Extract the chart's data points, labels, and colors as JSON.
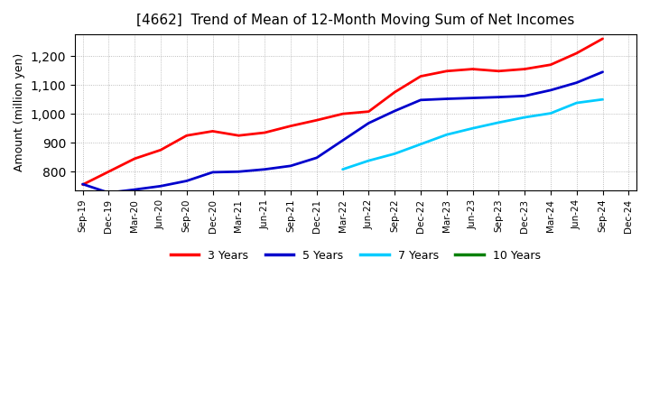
{
  "title": "[4662]  Trend of Mean of 12-Month Moving Sum of Net Incomes",
  "ylabel": "Amount (million yen)",
  "background_color": "#ffffff",
  "grid_color": "#aaaaaa",
  "ylim": [
    735,
    1275
  ],
  "yticks": [
    800,
    900,
    1000,
    1100,
    1200
  ],
  "x_labels": [
    "Sep-19",
    "Dec-19",
    "Mar-20",
    "Jun-20",
    "Sep-20",
    "Dec-20",
    "Mar-21",
    "Jun-21",
    "Sep-21",
    "Dec-21",
    "Mar-22",
    "Jun-22",
    "Sep-22",
    "Dec-22",
    "Mar-23",
    "Jun-23",
    "Sep-23",
    "Dec-23",
    "Mar-24",
    "Jun-24",
    "Sep-24",
    "Dec-24"
  ],
  "series": {
    "3 Years": {
      "color": "#ff0000",
      "data_x": [
        0,
        1,
        2,
        3,
        4,
        5,
        6,
        7,
        8,
        9,
        10,
        11,
        12,
        13,
        14,
        15,
        16,
        17,
        18,
        19,
        20
      ],
      "data_y": [
        755,
        800,
        845,
        875,
        925,
        940,
        925,
        935,
        958,
        978,
        1000,
        1008,
        1075,
        1130,
        1148,
        1155,
        1148,
        1155,
        1170,
        1210,
        1260
      ]
    },
    "5 Years": {
      "color": "#0000cc",
      "data_x": [
        0,
        1,
        2,
        3,
        4,
        5,
        6,
        7,
        8,
        9,
        10,
        11,
        12,
        13,
        14,
        15,
        16,
        17,
        18,
        19,
        20
      ],
      "data_y": [
        757,
        727,
        738,
        750,
        768,
        798,
        800,
        808,
        820,
        848,
        908,
        968,
        1010,
        1048,
        1052,
        1055,
        1058,
        1062,
        1082,
        1108,
        1145
      ]
    },
    "7 Years": {
      "color": "#00ccff",
      "data_x": [
        10,
        11,
        12,
        13,
        14,
        15,
        16,
        17,
        18,
        19,
        20
      ],
      "data_y": [
        808,
        838,
        862,
        895,
        928,
        950,
        970,
        988,
        1002,
        1038,
        1050
      ]
    },
    "10 Years": {
      "color": "#008000",
      "data_x": [],
      "data_y": []
    }
  },
  "legend_items": [
    "3 Years",
    "5 Years",
    "7 Years",
    "10 Years"
  ],
  "legend_colors": [
    "#ff0000",
    "#0000cc",
    "#00ccff",
    "#008000"
  ]
}
